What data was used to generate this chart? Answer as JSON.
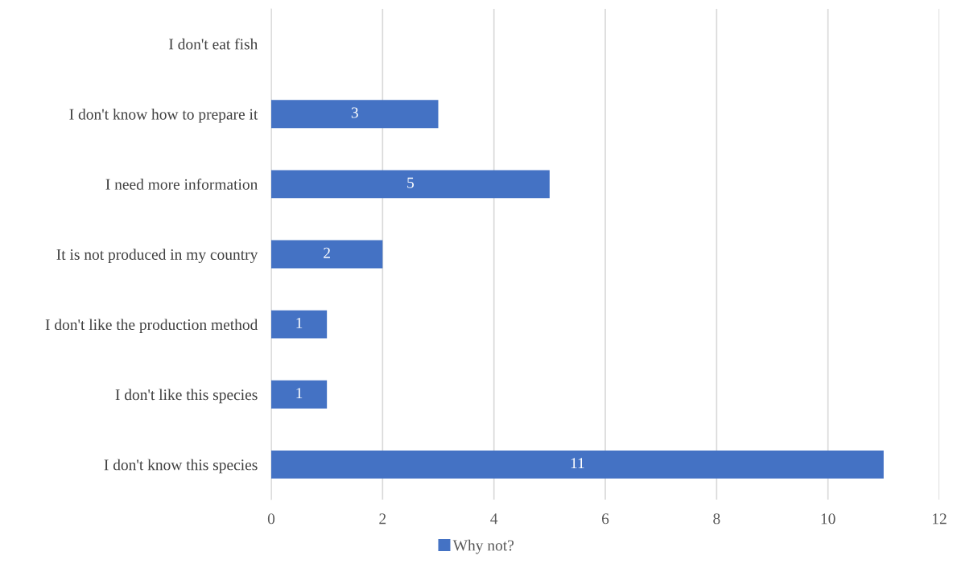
{
  "chart_data": {
    "type": "bar",
    "orientation": "horizontal",
    "categories": [
      "I don't eat fish",
      "I don't know how to prepare it",
      "I need more information",
      "It is not produced in my country",
      "I don't like the production method",
      "I don't like this species",
      "I don't know this species"
    ],
    "series": [
      {
        "name": "Why not?",
        "color": "#4472c4",
        "values": [
          0,
          3,
          5,
          2,
          1,
          1,
          11
        ],
        "value_labels": [
          null,
          "3",
          "5",
          "2",
          "1",
          "1",
          "11"
        ]
      }
    ],
    "xlim": [
      0,
      12
    ],
    "xticks": [
      0,
      2,
      4,
      6,
      8,
      10,
      12
    ],
    "grid": "x",
    "legend": "bottom"
  }
}
